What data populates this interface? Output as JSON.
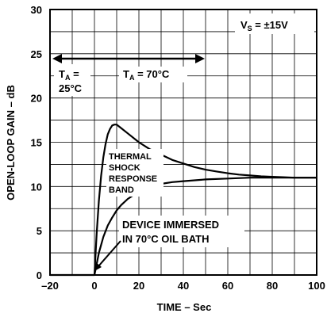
{
  "chart_data": {
    "type": "line",
    "title": "",
    "xlabel": "TIME – Sec",
    "ylabel": "OPEN-LOOP GAIN – dB",
    "xlim": [
      -20,
      100
    ],
    "ylim": [
      0,
      30
    ],
    "x_ticks": [
      "–20",
      "0",
      "20",
      "40",
      "60",
      "80",
      "100"
    ],
    "y_ticks": [
      "0",
      "5",
      "10",
      "15",
      "20",
      "25",
      "30"
    ],
    "grid": true,
    "series": [
      {
        "x": [
          -20,
          -10,
          0,
          1,
          2,
          3,
          4,
          5,
          6,
          7,
          8,
          9,
          10,
          12,
          15,
          20,
          25,
          30,
          35,
          40,
          45,
          50,
          55,
          60,
          65,
          70,
          75,
          80,
          85,
          90,
          95,
          100
        ],
        "y": [
          0,
          0,
          0,
          4.7,
          8.4,
          11.2,
          13.3,
          14.8,
          15.9,
          16.5,
          16.9,
          17.0,
          17.0,
          16.6,
          16.0,
          15.0,
          14.2,
          13.6,
          13.0,
          12.6,
          12.2,
          11.9,
          11.7,
          11.5,
          11.35,
          11.25,
          11.15,
          11.1,
          11.05,
          11.0,
          11.0,
          11.0
        ]
      },
      {
        "x": [
          0,
          2,
          4,
          6,
          8,
          10,
          12,
          15,
          18,
          20,
          25,
          30,
          35,
          40,
          50,
          60,
          70,
          80,
          90,
          100
        ],
        "y": [
          0,
          2.5,
          4.3,
          5.6,
          6.5,
          7.3,
          7.9,
          8.6,
          9.1,
          9.4,
          9.9,
          10.3,
          10.5,
          10.6,
          10.8,
          10.9,
          11.0,
          11.0,
          11.0,
          11.0
        ]
      }
    ],
    "annotations": {
      "vs_label": "V",
      "vs_sub": "S",
      "vs_value": " = ±15V",
      "ta_left_label": "T",
      "ta_left_sub": "A",
      "ta_left_eq": " =",
      "ta_left_value": "25°C",
      "ta_right_label": "T",
      "ta_right_sub": "A",
      "ta_right_value": " = 70°C",
      "band_line1": "THERMAL",
      "band_line2": "SHOCK",
      "band_line3": "RESPONSE",
      "band_line4": "BAND",
      "device_line1": "DEVICE IMMERSED",
      "device_line2": "IN 70°C OIL BATH"
    }
  }
}
